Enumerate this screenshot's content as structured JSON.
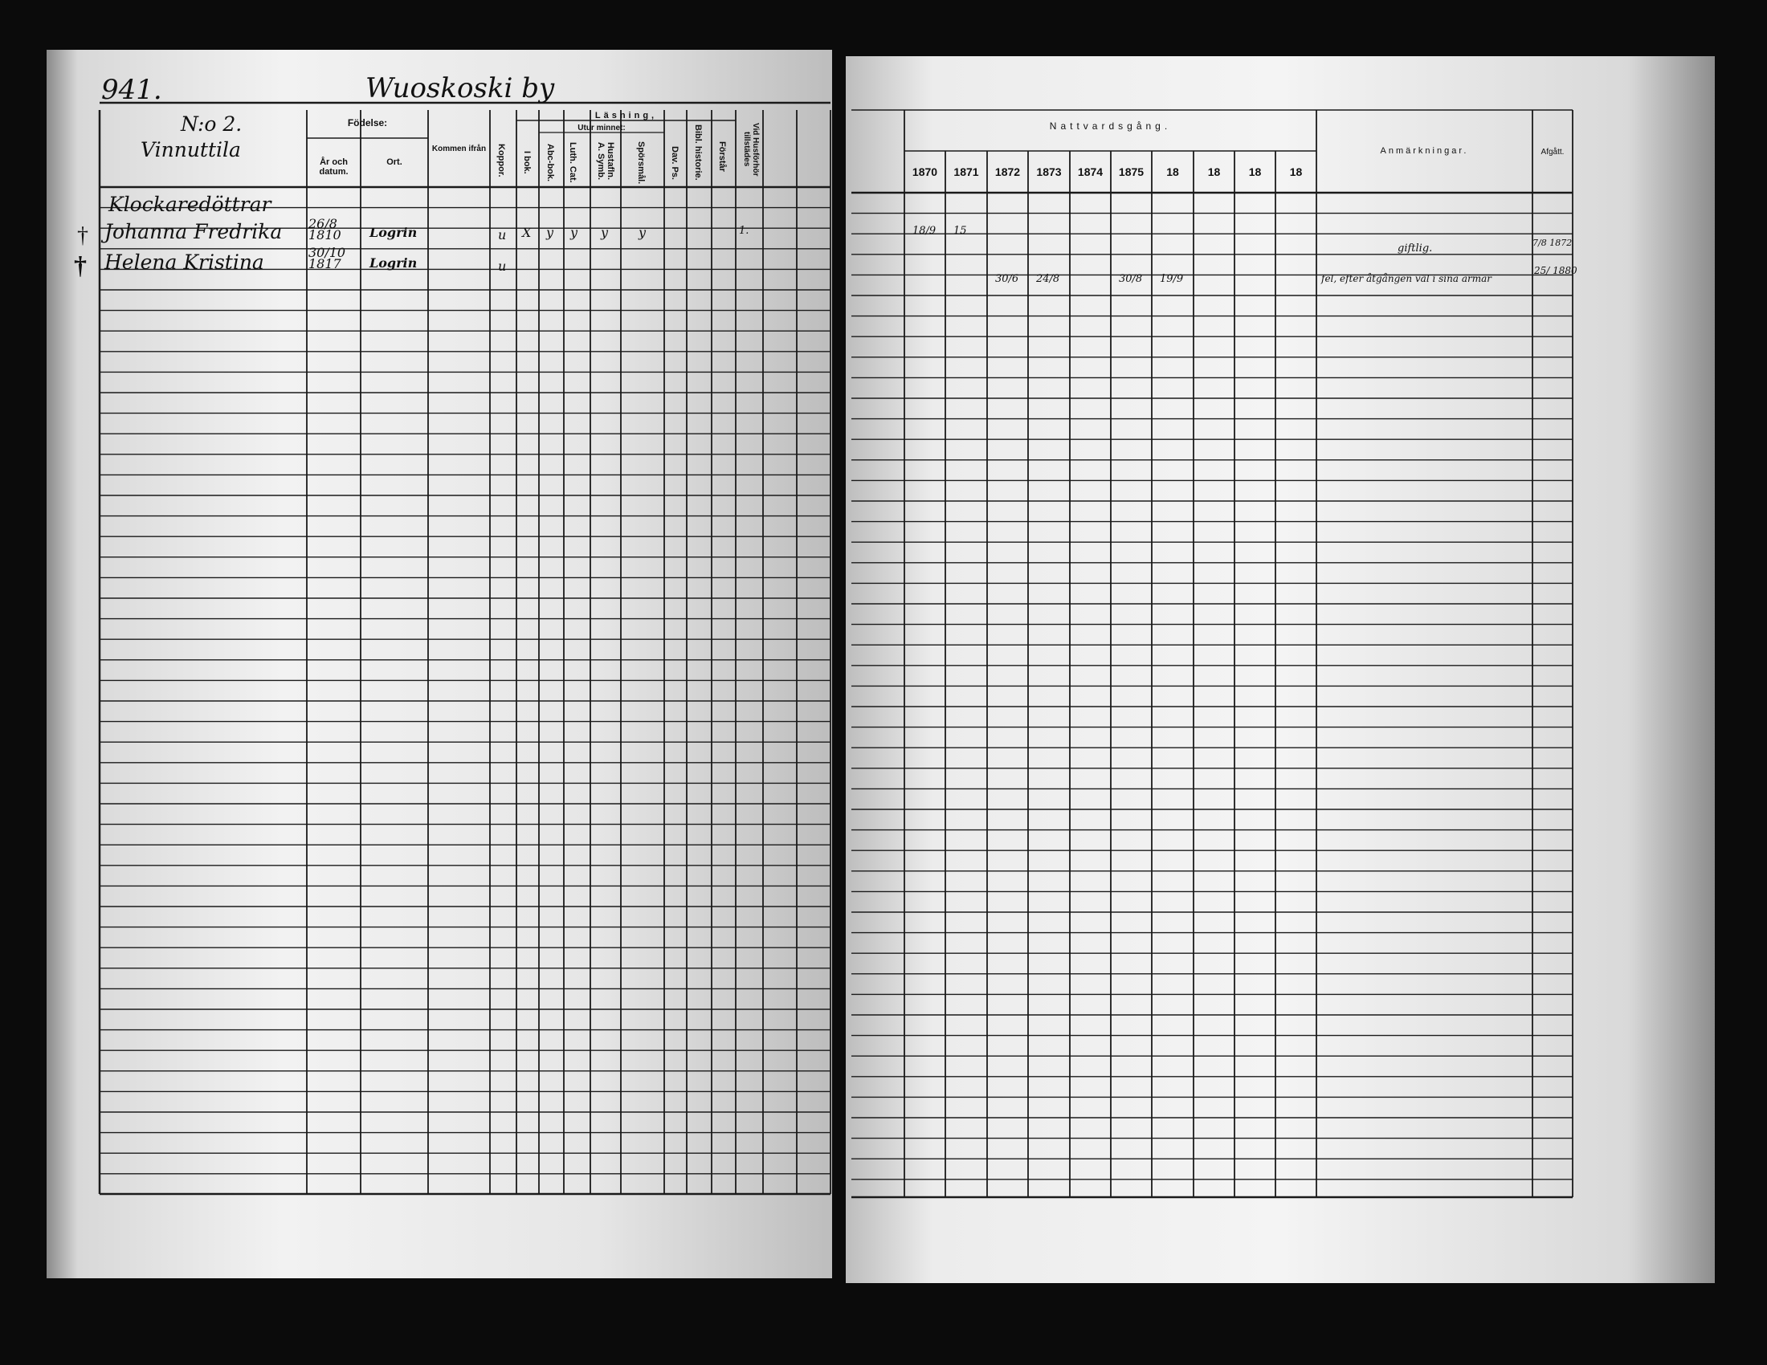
{
  "left_page": {
    "page_number": "941.",
    "village": "Wuoskoski by",
    "household_number": "N:o 2.",
    "household_name": "Vinnuttila",
    "headers": {
      "birth": "Födelse:",
      "birth_date": "År och datum.",
      "birth_place": "Ort.",
      "came_from": "Kommen ifrån",
      "smallpox": "Koppor.",
      "reading": "Läsning,",
      "by_heart": "Utur minnet:",
      "in_book": "I bok.",
      "abc_book": "Abc-bok.",
      "luth_cat": "Luth. Cat.",
      "hustafl": "Hustafln. A. Symb.",
      "questions": "Spörsmål.",
      "dav_ps": "Dav. Ps.",
      "bible_history": "Bibl. historie.",
      "understands": "Förstår",
      "present_at_examination": "Vid Husförhör tillstädes"
    },
    "rows": [
      {
        "name": "Klockaredöttrar",
        "death_mark": "",
        "birth_date": "",
        "birth_place": "",
        "smallpox": "",
        "marks": [],
        "examination": ""
      },
      {
        "name": "Johanna Fredrika",
        "death_mark": "†",
        "birth_date": "26/8 1810",
        "birth_place": "Logrin",
        "smallpox": "u",
        "marks": [
          "X",
          "y",
          "y",
          "y",
          "y"
        ],
        "examination": "1."
      },
      {
        "name": "Helena Kristina",
        "death_mark": "†",
        "birth_date": "30/10 1817",
        "birth_place": "Logrin",
        "smallpox": "u",
        "marks": [],
        "examination": ""
      }
    ]
  },
  "right_page": {
    "communion_header": "Nattvardsgång.",
    "years": [
      "1870",
      "1871",
      "1872",
      "1873",
      "1874",
      "1875",
      "18",
      "18",
      "18",
      "18"
    ],
    "remarks_header": "Anmärkningar.",
    "departed_header": "Afgått.",
    "rows": [
      {
        "communion": [
          "18/9",
          "15",
          "",
          "",
          "",
          "",
          ""
        ],
        "remarks": "",
        "departed": ""
      },
      {
        "communion": [
          "",
          "",
          "",
          "",
          "",
          "",
          ""
        ],
        "remarks": "giftlig.",
        "departed": "7/8 1872"
      },
      {
        "communion": [
          "",
          "",
          "30/6",
          "24/8",
          "",
          "30/8",
          "19/9"
        ],
        "remarks": "fel, efter åtgången väl i sina armar",
        "departed": "25/ 1880"
      }
    ]
  },
  "colors": {
    "background": "#0b0b0b",
    "paper": "#f2f2f2",
    "ink": "#111111"
  }
}
